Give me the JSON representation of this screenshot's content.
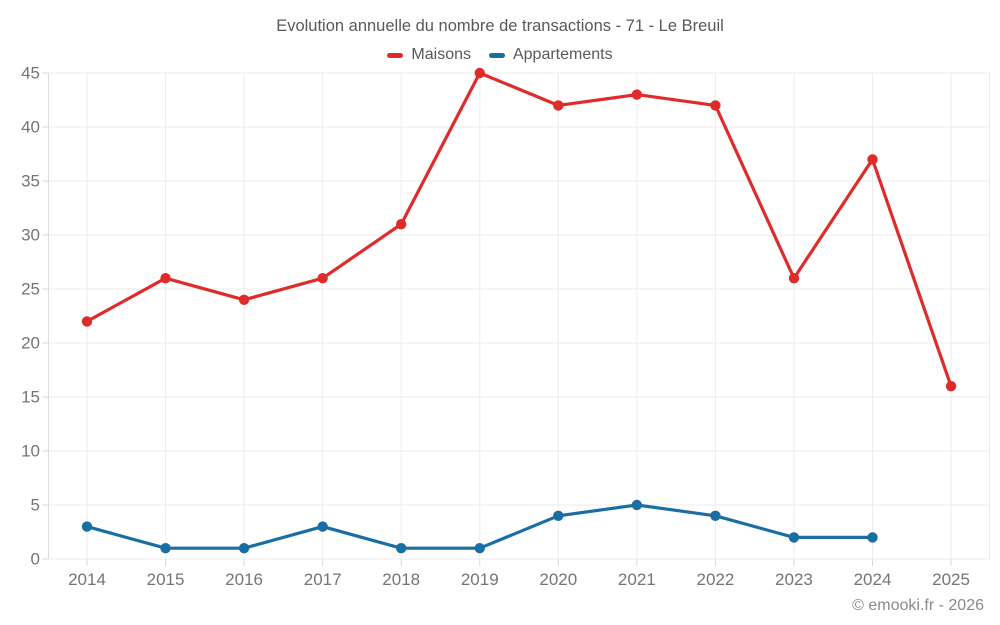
{
  "chart_data": {
    "type": "line",
    "title": "Evolution annuelle du nombre de transactions - 71 - Le Breuil",
    "categories": [
      "2014",
      "2015",
      "2016",
      "2017",
      "2018",
      "2019",
      "2020",
      "2021",
      "2022",
      "2023",
      "2024",
      "2025"
    ],
    "series": [
      {
        "name": "Maisons",
        "color": "#e02b2b",
        "values": [
          22,
          26,
          24,
          26,
          31,
          45,
          42,
          43,
          42,
          26,
          37,
          16
        ]
      },
      {
        "name": "Appartements",
        "color": "#1b6ea4",
        "values": [
          3,
          1,
          1,
          3,
          1,
          1,
          4,
          5,
          4,
          2,
          2,
          null
        ]
      }
    ],
    "ylim": [
      0,
      45
    ],
    "ytick_step": 5,
    "grid": true,
    "legend_position": "top"
  },
  "colors": {
    "grid_line": "#ededed",
    "axis_line": "#dddddd",
    "tick_mark": "#d9d9d9",
    "axis_text": "#757575",
    "title_text": "#595959",
    "footer_text": "#8a8a8a"
  },
  "footer": {
    "copyright": "© emooki.fr - 2026"
  }
}
